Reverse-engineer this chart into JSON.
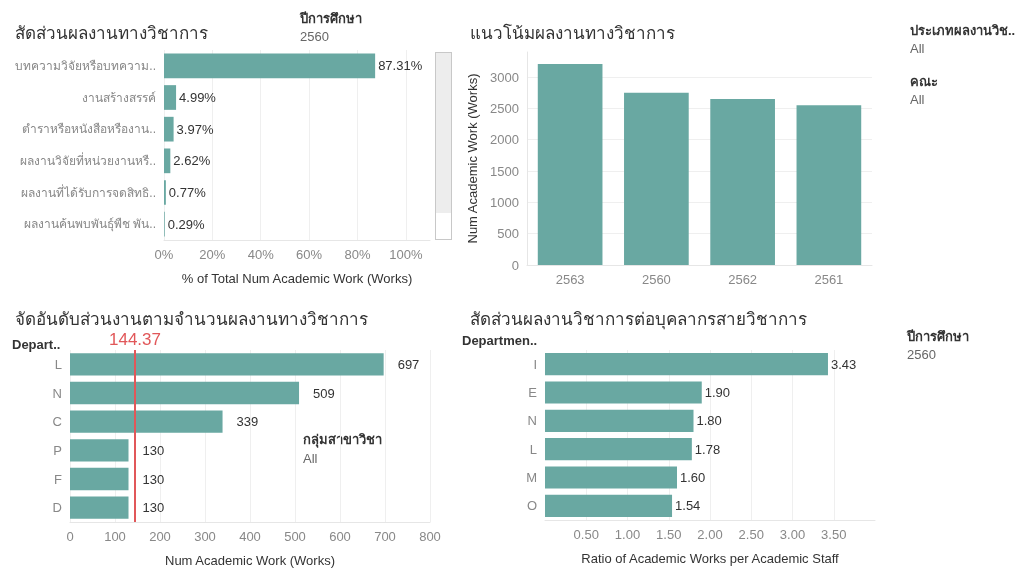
{
  "chart_data": [
    {
      "type": "bar",
      "orientation": "horizontal",
      "title": "สัดส่วนผลงานทางวิชาการ",
      "xlabel": "% of Total Num Academic Work (Works)",
      "categories": [
        "บทความวิจัยหรือบทความ..",
        "งานสร้างสรรค์",
        "ตำราหรือหนังสือหรืองาน..",
        "ผลงานวิจัยที่หน่วยงานหรื..",
        "ผลงานที่ได้รับการจดสิทธิ..",
        "ผลงานค้นพบพันธุ์พืช พัน.."
      ],
      "values": [
        87.31,
        4.99,
        3.97,
        2.62,
        0.77,
        0.29
      ],
      "value_labels": [
        "87.31%",
        "4.99%",
        "3.97%",
        "2.62%",
        "0.77%",
        "0.29%"
      ],
      "color": "#69a8a2",
      "xlim": [
        0,
        110
      ],
      "xticks": [
        {
          "value": 0,
          "label": "0%"
        },
        {
          "value": 20,
          "label": "20%"
        },
        {
          "value": 40,
          "label": "40%"
        },
        {
          "value": 60,
          "label": "60%"
        },
        {
          "value": 80,
          "label": "80%"
        },
        {
          "value": 100,
          "label": "100%"
        }
      ],
      "grid": "x",
      "annotations": [
        "ปีการศึกษา",
        "2560"
      ]
    },
    {
      "type": "bar",
      "title": "แนวโน้มผลงานทางวิชาการ",
      "ylabel": "Num Academic Work (Works)",
      "categories": [
        "2563",
        "2560",
        "2562",
        "2561"
      ],
      "values": [
        3210,
        2750,
        2650,
        2550
      ],
      "color": "#69a8a2",
      "ylim": [
        0,
        3400
      ],
      "yticks": [
        0,
        500,
        1000,
        1500,
        2000,
        2500,
        3000
      ],
      "grid": "y",
      "annotations": [
        "ประเภทผลงานวิช..",
        "All",
        "คณะ",
        "All"
      ]
    },
    {
      "type": "bar",
      "orientation": "horizontal",
      "title": "จัดอันดับส่วนงานตามจำนวนผลงานทางวิชาการ",
      "xlabel": "Num Academic Work (Works)",
      "ylabel": "Depart..",
      "categories": [
        "L",
        "N",
        "C",
        "P",
        "F",
        "D"
      ],
      "values": [
        697,
        509,
        339,
        130,
        130,
        130
      ],
      "data_labels": true,
      "color": "#69a8a2",
      "xlim": [
        0,
        800
      ],
      "xticks": [
        0,
        100,
        200,
        300,
        400,
        500,
        600,
        700,
        800
      ],
      "grid": "x",
      "ref_lines": [
        {
          "axis": "x",
          "value": 144.37,
          "label": "144.37",
          "color": "#e15759"
        }
      ],
      "annotations": [
        "กลุ่มสาขาวิชา",
        "All"
      ]
    },
    {
      "type": "bar",
      "orientation": "horizontal",
      "title": "สัดส่วนผลงานวิชาการต่อบุคลากรสายวิชาการ",
      "xlabel": "Ratio of Academic Works per Academic Staff",
      "ylabel": "Departmen..",
      "categories": [
        "I",
        "E",
        "N",
        "L",
        "M",
        "O"
      ],
      "values": [
        3.43,
        1.9,
        1.8,
        1.78,
        1.6,
        1.54
      ],
      "value_labels": [
        "3.43",
        "1.90",
        "1.80",
        "1.78",
        "1.60",
        "1.54"
      ],
      "color": "#69a8a2",
      "xlim": [
        0,
        4
      ],
      "xticks": [
        {
          "value": 0.5,
          "label": "0.50"
        },
        {
          "value": 1,
          "label": "1.00"
        },
        {
          "value": 1.5,
          "label": "1.50"
        },
        {
          "value": 2,
          "label": "2.00"
        },
        {
          "value": 2.5,
          "label": "2.50"
        },
        {
          "value": 3,
          "label": "3.00"
        },
        {
          "value": 3.5,
          "label": "3.50"
        }
      ],
      "grid": "x",
      "annotations": [
        "ปีการศึกษา",
        "2560"
      ]
    }
  ]
}
